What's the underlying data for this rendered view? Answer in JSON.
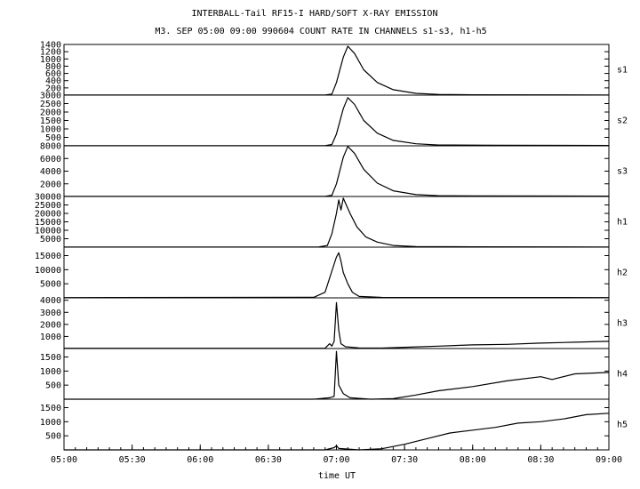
{
  "chart_data": {
    "type": "line",
    "title": "INTERBALL-Tail RF15-I HARD/SOFT X-RAY EMISSION",
    "subtitle": "M3. SEP 05:00 09:00 990604  COUNT RATE IN CHANNELS s1-s3, h1-h5",
    "xlabel": "time UT",
    "x_ticks": [
      "05:00",
      "05:30",
      "06:00",
      "06:30",
      "07:00",
      "07:30",
      "08:00",
      "08:30",
      "09:00"
    ],
    "xlim": [
      "05:00",
      "09:00"
    ],
    "grid": false,
    "panels": [
      {
        "name": "s1",
        "ylim": [
          0,
          1400
        ],
        "y_ticks": [
          200,
          400,
          600,
          800,
          1000,
          1200,
          1400
        ],
        "points": [
          [
            "05:00",
            5
          ],
          [
            "06:55",
            5
          ],
          [
            "06:58",
            30
          ],
          [
            "07:00",
            350
          ],
          [
            "07:03",
            1050
          ],
          [
            "07:05",
            1350
          ],
          [
            "07:08",
            1150
          ],
          [
            "07:12",
            700
          ],
          [
            "07:18",
            350
          ],
          [
            "07:25",
            150
          ],
          [
            "07:35",
            50
          ],
          [
            "07:45",
            20
          ],
          [
            "08:00",
            10
          ],
          [
            "09:00",
            5
          ]
        ]
      },
      {
        "name": "s2",
        "ylim": [
          0,
          3000
        ],
        "y_ticks": [
          500,
          1000,
          1500,
          2000,
          2500,
          3000
        ],
        "points": [
          [
            "05:00",
            10
          ],
          [
            "06:55",
            10
          ],
          [
            "06:58",
            80
          ],
          [
            "07:00",
            700
          ],
          [
            "07:03",
            2200
          ],
          [
            "07:05",
            2850
          ],
          [
            "07:08",
            2450
          ],
          [
            "07:12",
            1500
          ],
          [
            "07:18",
            750
          ],
          [
            "07:25",
            320
          ],
          [
            "07:35",
            120
          ],
          [
            "07:45",
            50
          ],
          [
            "08:00",
            40
          ],
          [
            "08:10",
            30
          ],
          [
            "09:00",
            20
          ]
        ]
      },
      {
        "name": "s3",
        "ylim": [
          0,
          8000
        ],
        "y_ticks": [
          2000,
          4000,
          6000,
          8000
        ],
        "points": [
          [
            "05:00",
            30
          ],
          [
            "06:55",
            30
          ],
          [
            "06:58",
            200
          ],
          [
            "07:00",
            2000
          ],
          [
            "07:03",
            6200
          ],
          [
            "07:05",
            7900
          ],
          [
            "07:08",
            6800
          ],
          [
            "07:12",
            4300
          ],
          [
            "07:18",
            2100
          ],
          [
            "07:25",
            900
          ],
          [
            "07:35",
            300
          ],
          [
            "07:45",
            120
          ],
          [
            "08:00",
            80
          ],
          [
            "09:00",
            60
          ]
        ]
      },
      {
        "name": "h1",
        "ylim": [
          0,
          30000
        ],
        "y_ticks": [
          5000,
          10000,
          15000,
          20000,
          25000,
          30000
        ],
        "points": [
          [
            "05:00",
            100
          ],
          [
            "06:52",
            100
          ],
          [
            "06:56",
            1000
          ],
          [
            "06:58",
            8000
          ],
          [
            "07:00",
            20000
          ],
          [
            "07:01",
            28000
          ],
          [
            "07:02",
            22000
          ],
          [
            "07:03",
            29000
          ],
          [
            "07:04",
            26000
          ],
          [
            "07:06",
            20000
          ],
          [
            "07:09",
            12000
          ],
          [
            "07:13",
            6000
          ],
          [
            "07:18",
            3000
          ],
          [
            "07:25",
            1000
          ],
          [
            "07:35",
            300
          ],
          [
            "08:00",
            200
          ],
          [
            "09:00",
            100
          ]
        ]
      },
      {
        "name": "h2",
        "ylim": [
          0,
          18000
        ],
        "y_ticks": [
          5000,
          10000,
          15000
        ],
        "points": [
          [
            "05:00",
            100
          ],
          [
            "06:50",
            200
          ],
          [
            "06:55",
            2000
          ],
          [
            "06:57",
            7000
          ],
          [
            "06:59",
            12000
          ],
          [
            "07:00",
            14500
          ],
          [
            "07:01",
            16000
          ],
          [
            "07:02",
            13000
          ],
          [
            "07:03",
            9000
          ],
          [
            "07:05",
            5000
          ],
          [
            "07:07",
            2000
          ],
          [
            "07:10",
            500
          ],
          [
            "07:20",
            150
          ],
          [
            "09:00",
            100
          ]
        ]
      },
      {
        "name": "h3",
        "ylim": [
          0,
          4200
        ],
        "y_ticks": [
          1000,
          2000,
          3000,
          4000
        ],
        "points": [
          [
            "05:00",
            20
          ],
          [
            "06:55",
            20
          ],
          [
            "06:57",
            400
          ],
          [
            "06:58",
            200
          ],
          [
            "06:59",
            600
          ],
          [
            "07:00",
            3800
          ],
          [
            "07:01",
            1500
          ],
          [
            "07:02",
            400
          ],
          [
            "07:04",
            150
          ],
          [
            "07:10",
            50
          ],
          [
            "07:20",
            40
          ],
          [
            "07:30",
            100
          ],
          [
            "07:45",
            200
          ],
          [
            "08:00",
            300
          ],
          [
            "08:15",
            350
          ],
          [
            "08:30",
            450
          ],
          [
            "08:45",
            520
          ],
          [
            "09:00",
            600
          ]
        ]
      },
      {
        "name": "h4",
        "ylim": [
          0,
          1800
        ],
        "y_ticks": [
          500,
          1000,
          1500
        ],
        "points": [
          [
            "05:00",
            0
          ],
          [
            "06:50",
            0
          ],
          [
            "06:57",
            50
          ],
          [
            "06:59",
            100
          ],
          [
            "07:00",
            1700
          ],
          [
            "07:01",
            500
          ],
          [
            "07:03",
            200
          ],
          [
            "07:06",
            50
          ],
          [
            "07:15",
            0
          ],
          [
            "07:25",
            20
          ],
          [
            "07:35",
            150
          ],
          [
            "07:45",
            300
          ],
          [
            "08:00",
            450
          ],
          [
            "08:15",
            650
          ],
          [
            "08:30",
            800
          ],
          [
            "08:35",
            700
          ],
          [
            "08:45",
            900
          ],
          [
            "09:00",
            950
          ]
        ]
      },
      {
        "name": "h5",
        "ylim": [
          0,
          1800
        ],
        "y_ticks": [
          500,
          1000,
          1500
        ],
        "points": [
          [
            "05:00",
            0
          ],
          [
            "06:55",
            0
          ],
          [
            "06:59",
            80
          ],
          [
            "07:00",
            150
          ],
          [
            "07:01",
            50
          ],
          [
            "07:10",
            0
          ],
          [
            "07:20",
            40
          ],
          [
            "07:30",
            200
          ],
          [
            "07:40",
            400
          ],
          [
            "07:50",
            600
          ],
          [
            "08:00",
            700
          ],
          [
            "08:10",
            800
          ],
          [
            "08:20",
            950
          ],
          [
            "08:30",
            1000
          ],
          [
            "08:40",
            1100
          ],
          [
            "08:50",
            1250
          ],
          [
            "09:00",
            1300
          ]
        ]
      }
    ]
  }
}
